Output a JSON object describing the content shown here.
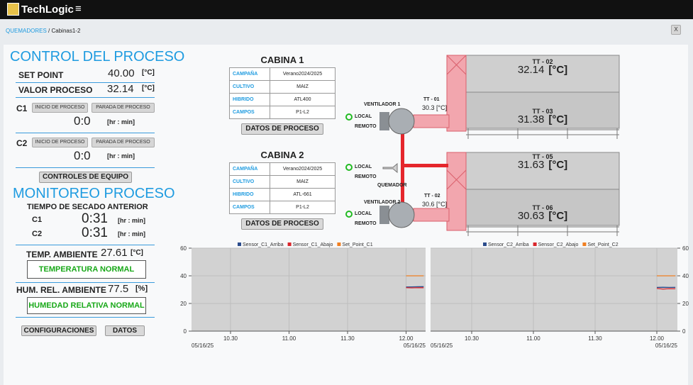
{
  "header": {
    "brand": "TechLogic"
  },
  "breadcrumb": {
    "parent": "QUEMADORES",
    "separator": "/",
    "current": "Cabinas1-2",
    "close": "X"
  },
  "control": {
    "title": "CONTROL DEL PROCESO",
    "set_point": {
      "label": "SET POINT",
      "value": "40.00",
      "unit": "[°C]"
    },
    "process_value": {
      "label": "VALOR PROCESO",
      "value": "32.14",
      "unit": "[°C]"
    },
    "c1": {
      "label": "C1",
      "start": "INICIO DE PROCESO",
      "stop": "PARADA DE PROCESO",
      "time": "0:0",
      "unit": "[hr : min]"
    },
    "c2": {
      "label": "C2",
      "start": "INICIO DE PROCESO",
      "stop": "PARADA DE PROCESO",
      "time": "0:0",
      "unit": "[hr : min]"
    },
    "equipment_button": "CONTROLES DE EQUIPO"
  },
  "monitoring": {
    "title": "MONITOREO PROCESO",
    "drying_title": "TIEMPO DE SECADO ANTERIOR",
    "c1": {
      "label": "C1",
      "time": "0:31",
      "unit": "[hr : min]"
    },
    "c2": {
      "label": "C2",
      "time": "0:31",
      "unit": "[hr : min]"
    },
    "ambient_temp": {
      "label": "TEMP. AMBIENTE",
      "value": "27.61",
      "unit": "[°C]",
      "status": "TEMPERATURA NORMAL"
    },
    "humidity": {
      "label": "HUM. REL. AMBIENTE",
      "value": "77.5",
      "unit": "[%]",
      "status": "HUMEDAD RELATIVA NORMAL"
    },
    "buttons": [
      "CONFIGURACIONES",
      "DATOS"
    ]
  },
  "cabins": [
    {
      "title": "CABINA 1",
      "rows": [
        [
          "CAMPAÑA",
          "Verano2024/2025"
        ],
        [
          "CULTIVO",
          "MAIZ"
        ],
        [
          "HIBRIDO",
          "ATL400"
        ],
        [
          "CAMPOS",
          "P1-L2"
        ]
      ],
      "button": "DATOS DE PROCESO"
    },
    {
      "title": "CABINA 2",
      "rows": [
        [
          "CAMPAÑA",
          "Verano2024/2025"
        ],
        [
          "CULTIVO",
          "MAIZ"
        ],
        [
          "HIBRIDO",
          "ATL-661"
        ],
        [
          "CAMPOS",
          "P1-L2"
        ]
      ],
      "button": "DATOS DE PROCESO"
    }
  ],
  "diagram": {
    "tanks": [
      {
        "tag": "TT - 02",
        "value": "32.14",
        "unit": "[°C]"
      },
      {
        "tag": "TT - 03",
        "value": "31.38",
        "unit": "[°C]"
      },
      {
        "tag": "TT - 05",
        "value": "31.63",
        "unit": "[°C]"
      },
      {
        "tag": "TT - 06",
        "value": "30.63",
        "unit": "[°C]"
      }
    ],
    "fan1": {
      "label": "VENTILADOR 1",
      "local": "LOCAL",
      "remote": "REMOTO",
      "tag": "TT - 01",
      "value": "30.3",
      "unit": "[°C]"
    },
    "burner": {
      "label": "QUEMADOR",
      "local": "LOCAL",
      "remote": "REMOTO"
    },
    "fan2": {
      "label": "VENTILADOR 2",
      "local": "LOCAL",
      "remote": "REMOTO",
      "tag": "TT - 02",
      "value": "30.6",
      "unit": "[°C]"
    }
  },
  "chart_data": [
    {
      "type": "line",
      "legend": "top",
      "y_axis_side": "left",
      "grid": true,
      "x": [
        720,
        723,
        726,
        729
      ],
      "xlim": [
        610,
        730
      ],
      "xticks": [
        {
          "value": 630,
          "label": "10.30"
        },
        {
          "value": 660,
          "label": "11.00"
        },
        {
          "value": 690,
          "label": "11.30"
        },
        {
          "value": 720,
          "label": "12.00"
        }
      ],
      "x_date": "05/16/25",
      "ylim": [
        0,
        60
      ],
      "yticks": [
        0,
        20,
        40,
        60
      ],
      "series": [
        {
          "name": "Sensor_C1_Arriba",
          "color": "#2b4c8c",
          "values": [
            31.9,
            32.0,
            32.1,
            32.14
          ]
        },
        {
          "name": "Sensor_C1_Abajo",
          "color": "#d9262c",
          "values": [
            31.4,
            31.3,
            31.4,
            31.38
          ]
        },
        {
          "name": "Set_Point_C1",
          "color": "#f07f22",
          "values": [
            40,
            40,
            40,
            40
          ]
        }
      ]
    },
    {
      "type": "line",
      "legend": "top",
      "y_axis_side": "right",
      "grid": true,
      "x": [
        720,
        723,
        726,
        729
      ],
      "xlim": [
        610,
        730
      ],
      "xticks": [
        {
          "value": 630,
          "label": "10.30"
        },
        {
          "value": 660,
          "label": "11.00"
        },
        {
          "value": 690,
          "label": "11.30"
        },
        {
          "value": 720,
          "label": "12.00"
        }
      ],
      "x_date": "05/16/25",
      "ylim": [
        0,
        60
      ],
      "yticks": [
        0,
        20,
        40,
        60
      ],
      "series": [
        {
          "name": "Sensor_C2_Arriba",
          "color": "#2b4c8c",
          "values": [
            31.6,
            31.7,
            31.6,
            31.63
          ]
        },
        {
          "name": "Sensor_C2_Abajo",
          "color": "#d9262c",
          "values": [
            30.9,
            30.4,
            30.7,
            30.63
          ]
        },
        {
          "name": "Set_Point_C2",
          "color": "#f07f22",
          "values": [
            40,
            40,
            40,
            40
          ]
        }
      ]
    }
  ]
}
